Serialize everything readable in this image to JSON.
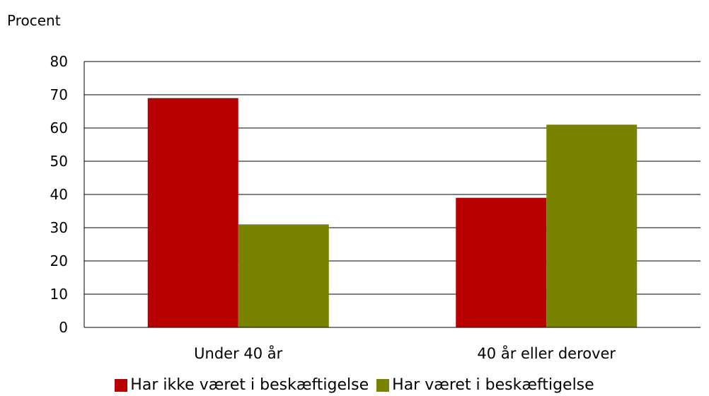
{
  "chart_data": {
    "type": "bar",
    "ylabel": "Procent",
    "ylim": [
      0,
      80
    ],
    "yticks": [
      0,
      10,
      20,
      30,
      40,
      50,
      60,
      70,
      80
    ],
    "grid": true,
    "legend_position": "bottom",
    "categories": [
      "Under 40 år",
      "40 år eller derover"
    ],
    "series": [
      {
        "name": "Har ikke været i beskæftigelse",
        "color": "#b70000",
        "values": [
          69,
          39
        ]
      },
      {
        "name": "Har været i beskæftigelse",
        "color": "#7a8300",
        "values": [
          31,
          61
        ]
      }
    ]
  }
}
